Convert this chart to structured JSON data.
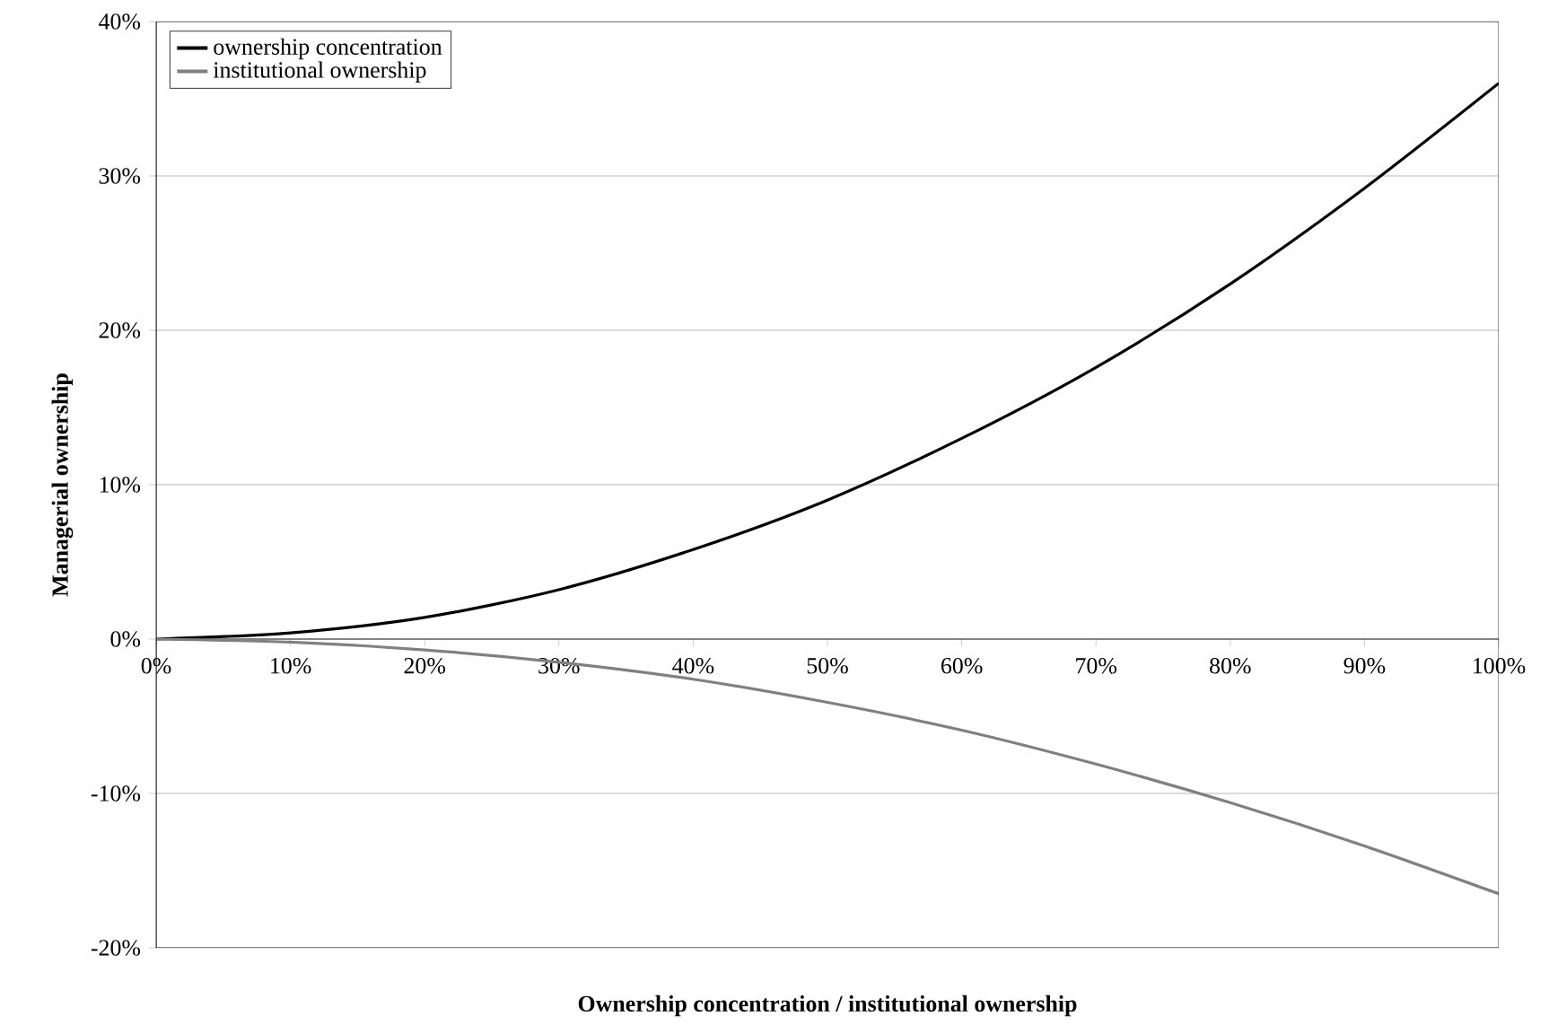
{
  "chart_data": {
    "type": "line",
    "xlabel": "Ownership concentration / institutional ownership",
    "ylabel": "Managerial ownership",
    "x": [
      0,
      10,
      20,
      30,
      40,
      50,
      60,
      70,
      80,
      90,
      100
    ],
    "series": [
      {
        "name": "ownership concentration",
        "color": "#000000",
        "values": [
          0,
          0.4,
          1.4,
          3.2,
          5.8,
          9,
          13,
          17.6,
          23,
          29.2,
          36
        ]
      },
      {
        "name": "institutional ownership",
        "color": "#808080",
        "values": [
          0,
          -0.2,
          -0.7,
          -1.5,
          -2.6,
          -4.1,
          -5.9,
          -8.1,
          -10.6,
          -13.4,
          -16.5
        ]
      }
    ],
    "xlim": [
      0,
      100
    ],
    "ylim": [
      -20,
      40
    ],
    "xticks": [
      {
        "value": 0,
        "label": "0%"
      },
      {
        "value": 10,
        "label": "10%"
      },
      {
        "value": 20,
        "label": "20%"
      },
      {
        "value": 30,
        "label": "30%"
      },
      {
        "value": 40,
        "label": "40%"
      },
      {
        "value": 50,
        "label": "50%"
      },
      {
        "value": 60,
        "label": "60%"
      },
      {
        "value": 70,
        "label": "70%"
      },
      {
        "value": 80,
        "label": "80%"
      },
      {
        "value": 90,
        "label": "90%"
      },
      {
        "value": 100,
        "label": "100%"
      }
    ],
    "yticks": [
      {
        "value": -20,
        "label": "-20%"
      },
      {
        "value": -10,
        "label": "-10%"
      },
      {
        "value": 0,
        "label": "0%"
      },
      {
        "value": 10,
        "label": "10%"
      },
      {
        "value": 20,
        "label": "20%"
      },
      {
        "value": 30,
        "label": "30%"
      },
      {
        "value": 40,
        "label": "40%"
      }
    ],
    "grid": "y",
    "legend": "top left",
    "marker": "none",
    "line_style": "solid"
  }
}
